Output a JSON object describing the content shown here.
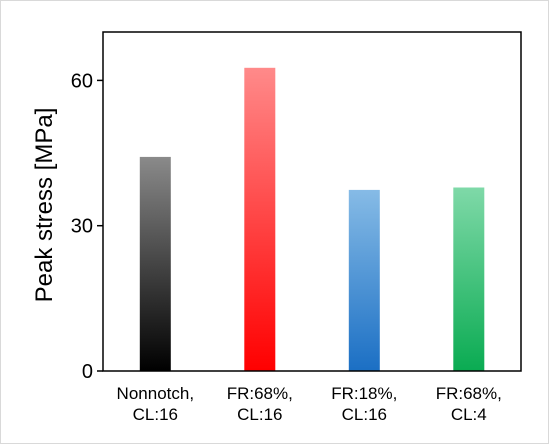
{
  "chart_data": {
    "type": "bar",
    "title": "",
    "xlabel": "",
    "ylabel": "Peak stress [MPa]",
    "ylim": [
      0,
      70
    ],
    "yticks": [
      "0",
      "30",
      "60"
    ],
    "grid": false,
    "categories": [
      [
        "Nonnotch,",
        "CL:16"
      ],
      [
        "FR:68%,",
        "CL:16"
      ],
      [
        "FR:18%,",
        "CL:16"
      ],
      [
        "FR:68%,",
        "CL:4"
      ]
    ],
    "values": [
      44.2,
      62.6,
      37.4,
      37.9
    ],
    "colors": [
      [
        "#8a8a8a",
        "#000000"
      ],
      [
        "#ff8a8a",
        "#ff0000"
      ],
      [
        "#86bbe6",
        "#1b6fc4"
      ],
      [
        "#7fd9a8",
        "#0aab52"
      ]
    ]
  }
}
